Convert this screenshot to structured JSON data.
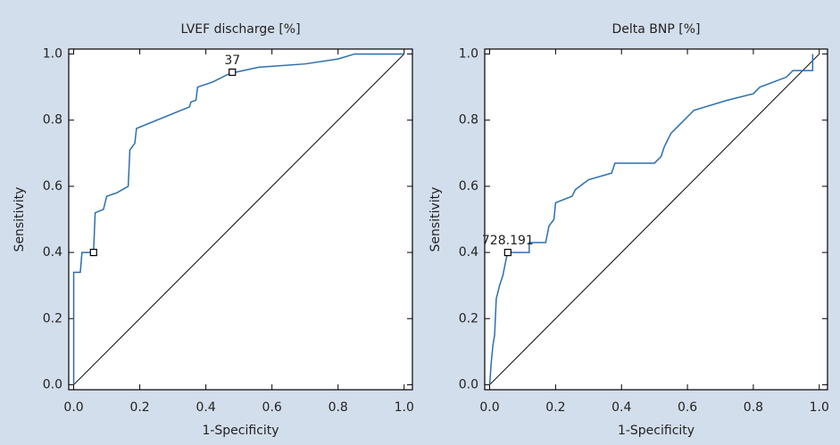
{
  "chart_data": [
    {
      "type": "line",
      "title": "LVEF discharge [%]",
      "x_label": "1-Specificity",
      "y_label": "Sensitivity",
      "color": "#2b6fae",
      "x": [
        0,
        0,
        0.02,
        0.025,
        0.06,
        0.065,
        0.09,
        0.1,
        0.13,
        0.165,
        0.17,
        0.185,
        0.19,
        0.35,
        0.355,
        0.37,
        0.375,
        0.42,
        0.47,
        0.49,
        0.56,
        0.7,
        0.8,
        0.85,
        1.0
      ],
      "values": [
        0,
        0.34,
        0.34,
        0.4,
        0.4,
        0.52,
        0.53,
        0.57,
        0.58,
        0.6,
        0.71,
        0.73,
        0.775,
        0.84,
        0.855,
        0.86,
        0.9,
        0.915,
        0.94,
        0.945,
        0.96,
        0.97,
        0.985,
        1.0,
        1.0
      ],
      "cutoffs": [
        {
          "x": 0.06,
          "y": 0.4
        },
        {
          "x": 0.48,
          "y": 0.945,
          "label": "37"
        }
      ],
      "xlim": [
        -0.015,
        1.025
      ],
      "ylim": [
        -0.015,
        1.015
      ],
      "xticks": [
        {
          "value": 0,
          "label": "0.0"
        },
        {
          "value": 0.2,
          "label": "0.2"
        },
        {
          "value": 0.4,
          "label": "0.4"
        },
        {
          "value": 0.6,
          "label": "0.6"
        },
        {
          "value": 0.8,
          "label": "0.8"
        },
        {
          "value": 1,
          "label": "1.0"
        }
      ],
      "yticks": [
        {
          "value": 0,
          "label": "0.0"
        },
        {
          "value": 0.2,
          "label": "0.2"
        },
        {
          "value": 0.4,
          "label": "0.4"
        },
        {
          "value": 0.6,
          "label": "0.6"
        },
        {
          "value": 0.8,
          "label": "0.8"
        },
        {
          "value": 1,
          "label": "1.0"
        }
      ]
    },
    {
      "type": "line",
      "title": "Delta BNP [%]",
      "x_label": "1-Specificity",
      "y_label": "Sensitivity",
      "color": "#2b6fae",
      "x": [
        0,
        0.005,
        0.01,
        0.015,
        0.02,
        0.03,
        0.04,
        0.05,
        0.055,
        0.12,
        0.12,
        0.17,
        0.18,
        0.195,
        0.2,
        0.25,
        0.26,
        0.3,
        0.37,
        0.38,
        0.5,
        0.52,
        0.53,
        0.55,
        0.58,
        0.6,
        0.62,
        0.72,
        0.8,
        0.82,
        0.9,
        0.92,
        0.98,
        0.98
      ],
      "values": [
        0,
        0.07,
        0.12,
        0.15,
        0.26,
        0.3,
        0.33,
        0.38,
        0.4,
        0.4,
        0.43,
        0.43,
        0.48,
        0.5,
        0.55,
        0.57,
        0.59,
        0.62,
        0.64,
        0.67,
        0.67,
        0.69,
        0.72,
        0.76,
        0.79,
        0.81,
        0.83,
        0.86,
        0.88,
        0.9,
        0.93,
        0.95,
        0.95,
        1.0
      ],
      "cutoffs": [
        {
          "x": 0.055,
          "y": 0.4,
          "label": "728.191"
        }
      ],
      "xlim": [
        -0.015,
        1.025
      ],
      "ylim": [
        -0.015,
        1.015
      ],
      "xticks": [
        {
          "value": 0,
          "label": "0.0"
        },
        {
          "value": 0.2,
          "label": "0.2"
        },
        {
          "value": 0.4,
          "label": "0.4"
        },
        {
          "value": 0.6,
          "label": "0.6"
        },
        {
          "value": 0.8,
          "label": "0.8"
        },
        {
          "value": 1,
          "label": "1.0"
        }
      ],
      "yticks": [
        {
          "value": 0,
          "label": "0.0"
        },
        {
          "value": 0.2,
          "label": "0.2"
        },
        {
          "value": 0.4,
          "label": "0.4"
        },
        {
          "value": 0.6,
          "label": "0.6"
        },
        {
          "value": 0.8,
          "label": "0.8"
        },
        {
          "value": 1,
          "label": "1.0"
        }
      ]
    }
  ]
}
